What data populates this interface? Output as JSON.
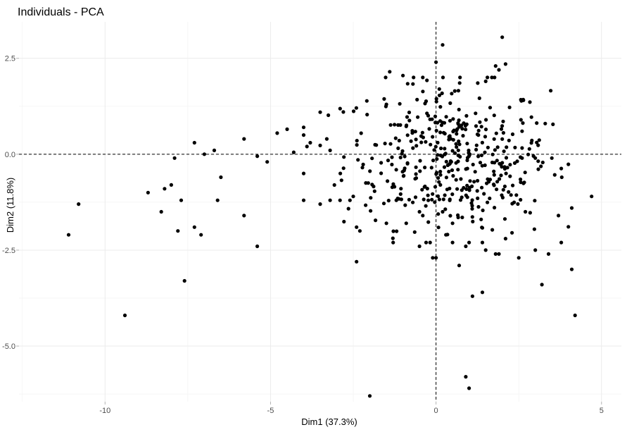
{
  "chart_data": {
    "type": "scatter",
    "title": "Individuals - PCA",
    "xlabel": "Dim1 (37.3%)",
    "ylabel": "Dim2 (11.8%)",
    "xlim": [
      -12.6,
      5.6
    ],
    "ylim": [
      -6.45,
      3.45
    ],
    "x_ticks": [
      -10,
      -5,
      0,
      5
    ],
    "x_tick_labels": [
      "-10",
      "-5",
      "0",
      "5"
    ],
    "y_ticks": [
      -5,
      -2.5,
      0,
      2.5
    ],
    "y_tick_labels": [
      "-5.0",
      "-2.5",
      "0.0",
      "2.5"
    ],
    "grid": true,
    "reference_lines": {
      "x": 0,
      "y": 0,
      "style": "dashed"
    },
    "point_color": "#000000",
    "outlier_points": [
      [
        -11.1,
        -2.1
      ],
      [
        -10.8,
        -1.3
      ],
      [
        -9.4,
        -4.2
      ],
      [
        -8.7,
        -1.0
      ],
      [
        -8.3,
        -1.5
      ],
      [
        -8.2,
        -0.9
      ],
      [
        -8.0,
        -0.8
      ],
      [
        -7.9,
        -0.1
      ],
      [
        -7.8,
        -2.0
      ],
      [
        -7.7,
        -1.2
      ],
      [
        -7.6,
        -3.3
      ],
      [
        -7.3,
        -1.9
      ],
      [
        -7.3,
        0.3
      ],
      [
        -7.0,
        0.0
      ],
      [
        -7.1,
        -2.1
      ],
      [
        -6.7,
        0.1
      ],
      [
        -6.6,
        -1.2
      ],
      [
        -6.5,
        -0.6
      ],
      [
        -5.8,
        0.4
      ],
      [
        -5.8,
        -1.6
      ],
      [
        -5.4,
        -0.05
      ],
      [
        -5.4,
        -2.4
      ],
      [
        -5.1,
        -0.2
      ],
      [
        -4.8,
        0.55
      ],
      [
        -4.5,
        0.65
      ],
      [
        -4.3,
        0.05
      ],
      [
        -4.0,
        0.7
      ],
      [
        -4.0,
        0.5
      ],
      [
        -4.0,
        -0.5
      ],
      [
        -4.0,
        -1.2
      ],
      [
        -3.9,
        0.2
      ],
      [
        -3.8,
        0.3
      ],
      [
        -3.5,
        -1.3
      ],
      [
        -3.3,
        0.4
      ],
      [
        -3.2,
        -1.2
      ],
      [
        -3.2,
        0.1
      ],
      [
        -2.9,
        -1.2
      ],
      [
        -2.8,
        1.1
      ],
      [
        -2.6,
        -1.2
      ],
      [
        -2.5,
        -1.1
      ],
      [
        -2.4,
        -1.9
      ],
      [
        -2.4,
        -2.8
      ],
      [
        -2.3,
        -2.0
      ],
      [
        -2.0,
        -6.3
      ],
      [
        -1.5,
        -1.8
      ],
      [
        -1.5,
        1.3
      ],
      [
        -1.4,
        2.15
      ],
      [
        -1.2,
        -1.2
      ],
      [
        -1.0,
        2.05
      ],
      [
        -0.9,
        -1.8
      ],
      [
        -0.5,
        -1.5
      ],
      [
        -0.4,
        -1.6
      ],
      [
        -0.4,
        2.0
      ],
      [
        0.2,
        2.85
      ],
      [
        0.0,
        2.4
      ],
      [
        0.1,
        1.7
      ],
      [
        0.2,
        -1.5
      ],
      [
        0.3,
        -2.1
      ],
      [
        0.5,
        -2.3
      ],
      [
        0.0,
        -2.7
      ],
      [
        -0.1,
        -2.7
      ],
      [
        0.9,
        -2.4
      ],
      [
        1.0,
        -2.3
      ],
      [
        0.7,
        -2.9
      ],
      [
        0.9,
        -5.8
      ],
      [
        1.0,
        -6.1
      ],
      [
        1.1,
        -3.7
      ],
      [
        1.4,
        -3.6
      ],
      [
        1.4,
        -2.3
      ],
      [
        1.8,
        -2.6
      ],
      [
        1.5,
        -2.5
      ],
      [
        1.9,
        -2.6
      ],
      [
        2.0,
        3.05
      ],
      [
        2.1,
        2.35
      ],
      [
        1.8,
        2.3
      ],
      [
        2.1,
        -2.2
      ],
      [
        2.5,
        -2.7
      ],
      [
        2.6,
        0.6
      ],
      [
        2.7,
        -1.5
      ],
      [
        3.0,
        -2.5
      ],
      [
        3.2,
        -3.4
      ],
      [
        3.3,
        0.8
      ],
      [
        3.4,
        -2.6
      ],
      [
        3.7,
        -1.6
      ],
      [
        3.8,
        -0.6
      ],
      [
        4.1,
        -3.0
      ],
      [
        4.2,
        -4.2
      ],
      [
        4.1,
        -1.4
      ],
      [
        4.7,
        -1.1
      ],
      [
        3.5,
        -0.1
      ],
      [
        3.0,
        -0.1
      ],
      [
        2.6,
        -0.1
      ],
      [
        1.9,
        2.2
      ],
      [
        1.5,
        1.9
      ],
      [
        0.5,
        -1.8
      ],
      [
        -0.5,
        -2.4
      ]
    ],
    "cluster": {
      "count": 420,
      "ellipses": [
        {
          "cx": 0.3,
          "cy": 0.0,
          "sx": 1.55,
          "sy": 0.95,
          "share": 0.8
        },
        {
          "cx": 1.2,
          "cy": -0.8,
          "sx": 1.2,
          "sy": 0.75,
          "share": 0.2
        }
      ]
    }
  }
}
